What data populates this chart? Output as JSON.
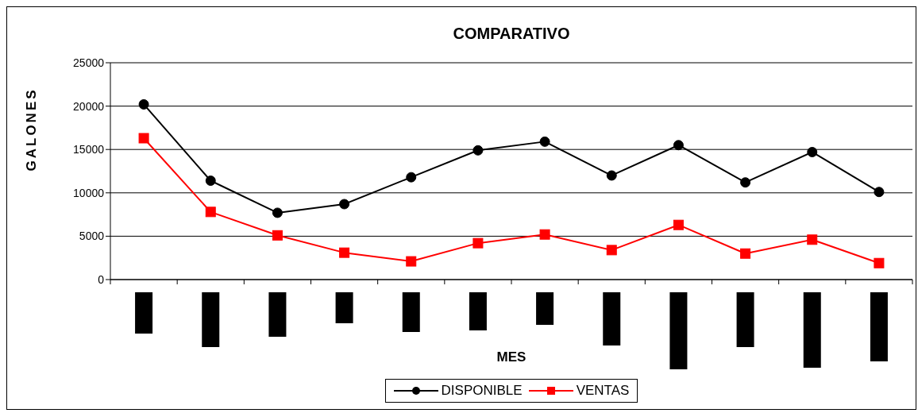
{
  "chart_data": {
    "type": "line",
    "title": "COMPARATIVO",
    "xlabel": "MES",
    "ylabel": "GALONES",
    "categories": [
      null,
      null,
      null,
      null,
      null,
      null,
      null,
      null,
      null,
      null,
      null,
      null
    ],
    "series": [
      {
        "name": "DISPONIBLE",
        "color": "#000000",
        "marker": "circle",
        "values": [
          20200,
          11400,
          7700,
          8700,
          11800,
          14900,
          15900,
          12000,
          15500,
          11200,
          14700,
          10100
        ]
      },
      {
        "name": "VENTAS",
        "color": "#ff0000",
        "marker": "square",
        "values": [
          16300,
          7800,
          5100,
          3100,
          2100,
          4200,
          5200,
          3400,
          6300,
          3000,
          4600,
          1900
        ]
      }
    ],
    "ylim": [
      0,
      25000
    ],
    "yticks": [
      0,
      5000,
      10000,
      15000,
      20000,
      25000
    ],
    "grid": "y",
    "legend": "bottom"
  }
}
